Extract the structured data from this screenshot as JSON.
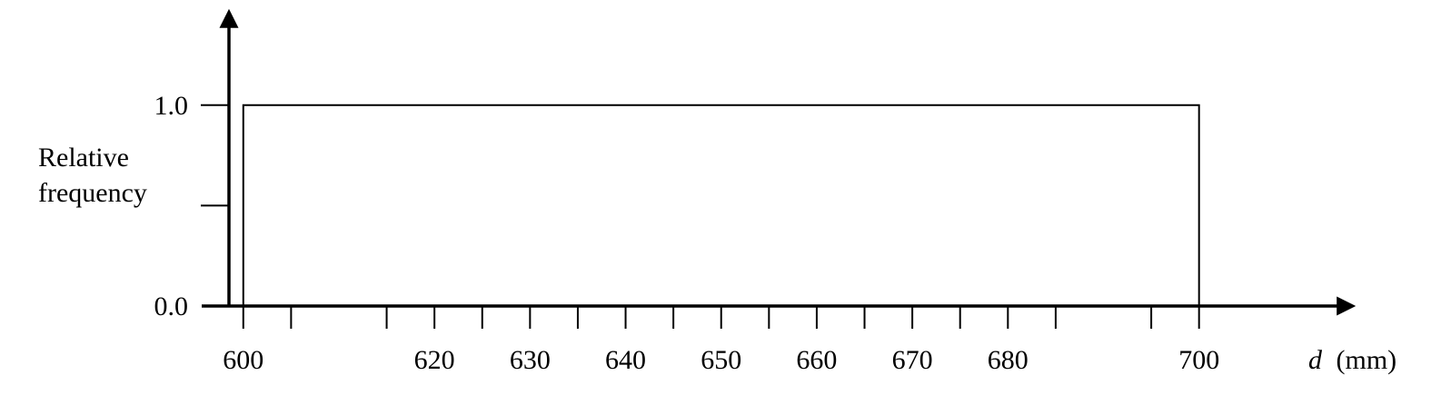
{
  "chart_data": {
    "type": "bar",
    "bins": [
      {
        "x0": 600,
        "x1": 700,
        "value": 1.0
      }
    ],
    "x_ticks": [
      600,
      620,
      630,
      640,
      650,
      660,
      670,
      680,
      700
    ],
    "x_minor_ticks": [
      605,
      615,
      625,
      635,
      645,
      655,
      665,
      675,
      685,
      695
    ],
    "y_ticks": [
      "0.0",
      "1.0"
    ],
    "y_minor_ticks": [
      0.5
    ],
    "xlabel_var": "d",
    "xlabel_unit": "(mm)",
    "ylabel": [
      "Relative",
      "frequency"
    ],
    "xlim": [
      598.5,
      716
    ],
    "ylim": [
      0,
      1.46
    ],
    "grid": false,
    "colors": {
      "axis": "#000000",
      "bar_stroke": "#000000",
      "bar_fill": "#ffffff"
    }
  }
}
